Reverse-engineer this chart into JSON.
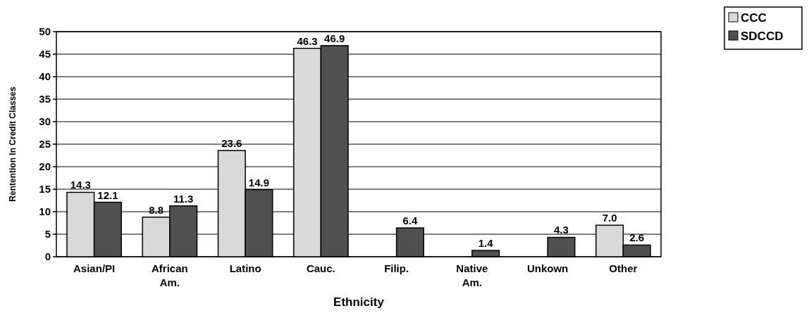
{
  "chart_data": {
    "type": "bar",
    "xlabel": "Ethnicity",
    "ylabel": "Rentention In Credit Classes",
    "categories": [
      "Asian/PI",
      "African Am.",
      "Latino",
      "Cauc.",
      "Filip.",
      "Native Am.",
      "Unkown",
      "Other"
    ],
    "series": [
      {
        "name": "CCC",
        "color": "#d9d9d9",
        "values": [
          14.3,
          8.8,
          23.6,
          46.3,
          null,
          null,
          null,
          7.0
        ],
        "value_labels": [
          "14.3",
          "8.8",
          "23.6",
          "46.3",
          null,
          null,
          null,
          "7.0"
        ]
      },
      {
        "name": "SDCCD",
        "color": "#505050",
        "values": [
          12.1,
          11.3,
          14.9,
          46.9,
          6.4,
          1.4,
          4.3,
          2.6
        ],
        "value_labels": [
          "12.1",
          "11.3",
          "14.9",
          "46.9",
          "6.4",
          "1.4",
          "4.3",
          "2.6"
        ]
      }
    ],
    "ylim": [
      0,
      50
    ],
    "yticks": [
      0,
      5,
      10,
      15,
      20,
      25,
      30,
      35,
      40,
      45,
      50
    ],
    "grid": "y",
    "legend": "top right"
  }
}
